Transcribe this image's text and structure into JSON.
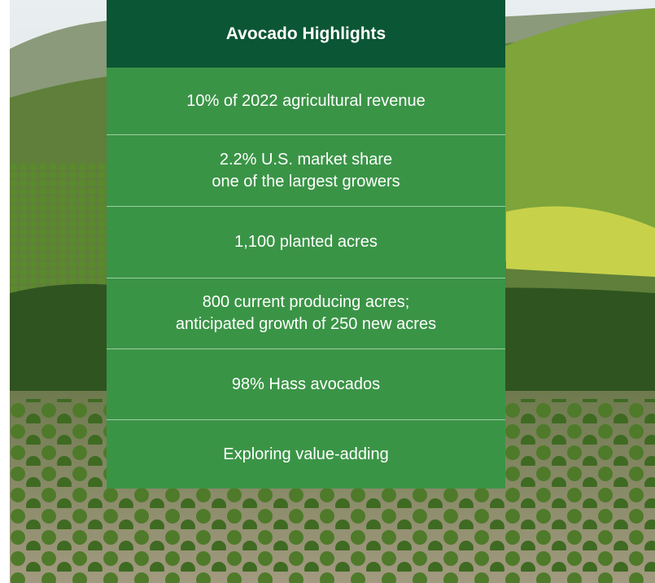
{
  "header": {
    "title": "Avocado Highlights"
  },
  "items": [
    {
      "lines": [
        "10% of 2022 agricultural revenue"
      ]
    },
    {
      "lines": [
        "2.2% U.S. market share",
        "one of the largest growers"
      ]
    },
    {
      "lines": [
        "1,100 planted acres"
      ]
    },
    {
      "lines": [
        "800 current producing acres;",
        "anticipated growth of 250 new acres"
      ]
    },
    {
      "lines": [
        "98% Hass avocados"
      ]
    },
    {
      "lines": [
        "Exploring value-adding"
      ]
    }
  ]
}
